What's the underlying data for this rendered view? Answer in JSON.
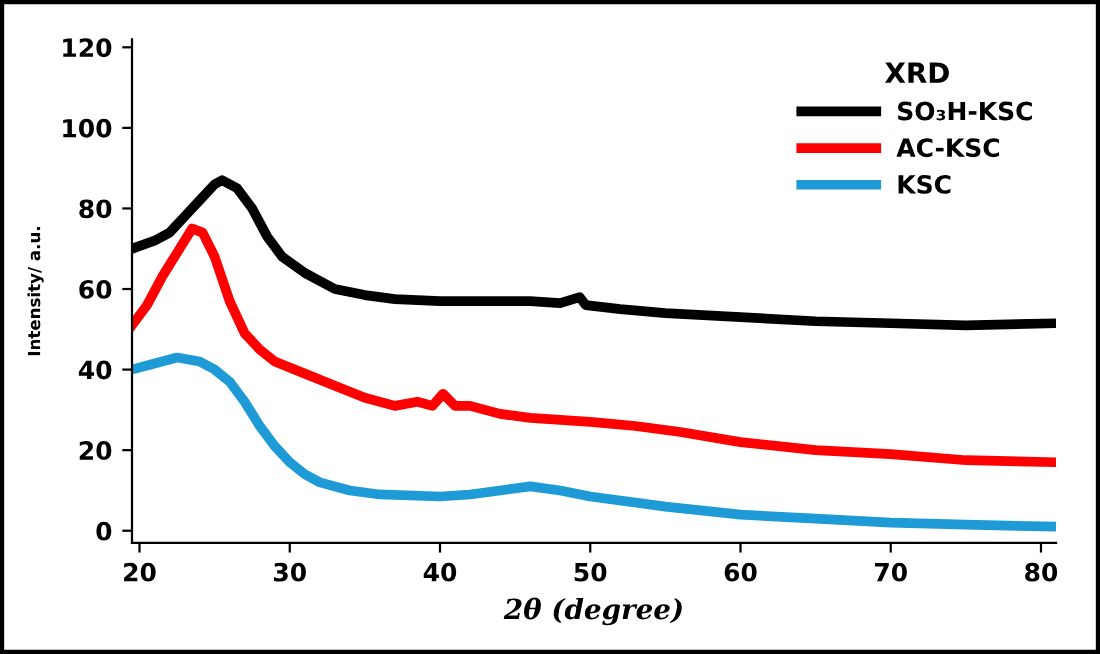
{
  "chart_data": {
    "type": "line",
    "xlabel": "2θ (degree)",
    "ylabel": "Intensity/ a.u.",
    "legend_title": "XRD",
    "legend": "top right",
    "grid": false,
    "marker": "none",
    "line_style": "solid",
    "xlim": [
      19.5,
      81
    ],
    "ylim": [
      -3,
      122
    ],
    "xticks": [
      20,
      30,
      40,
      50,
      60,
      70,
      80
    ],
    "yticks": [
      0,
      20,
      40,
      60,
      80,
      100,
      120
    ],
    "series": [
      {
        "name": "SO₃H-KSC",
        "color": "#000000",
        "x": [
          19.5,
          21,
          22,
          23,
          24,
          25,
          25.5,
          26.5,
          27.5,
          28.5,
          29.5,
          31,
          32,
          33,
          35,
          37,
          40,
          43,
          46,
          48,
          49.3,
          49.7,
          52,
          55,
          60,
          65,
          70,
          75,
          81
        ],
        "values": [
          70,
          72,
          74,
          78,
          82,
          86,
          87,
          85,
          80,
          73,
          68,
          64,
          62,
          60,
          58.5,
          57.5,
          57,
          57,
          57,
          56.5,
          58,
          56,
          55,
          54,
          53,
          52,
          51.5,
          51,
          51.5
        ]
      },
      {
        "name": "AC-KSC",
        "color": "#ff0000",
        "x": [
          19.5,
          20.5,
          21.5,
          22.5,
          23.5,
          24.2,
          25,
          26,
          27,
          28,
          29,
          31,
          33,
          35,
          37,
          38.5,
          39.5,
          40.2,
          41,
          42,
          44,
          46,
          48,
          50,
          53,
          56,
          60,
          65,
          70,
          75,
          81
        ],
        "values": [
          51,
          56,
          63,
          69,
          75,
          74,
          68,
          57,
          49,
          45,
          42,
          39,
          36,
          33,
          31,
          32,
          31,
          34,
          31,
          31,
          29,
          28,
          27.5,
          27,
          26,
          24.5,
          22,
          20,
          19,
          17.5,
          17
        ]
      },
      {
        "name": "KSC",
        "color": "#1e9ad6",
        "x": [
          19.5,
          21,
          22.5,
          24,
          25,
          26,
          27,
          28,
          29,
          30,
          31,
          32,
          34,
          36,
          40,
          42,
          44,
          46,
          48,
          50,
          55,
          60,
          65,
          70,
          75,
          81
        ],
        "values": [
          40,
          41.5,
          43,
          42,
          40,
          37,
          32,
          26,
          21,
          17,
          14,
          12,
          10,
          9,
          8.5,
          9,
          10,
          11,
          10,
          8.5,
          6,
          4,
          3,
          2,
          1.5,
          1
        ]
      }
    ]
  }
}
